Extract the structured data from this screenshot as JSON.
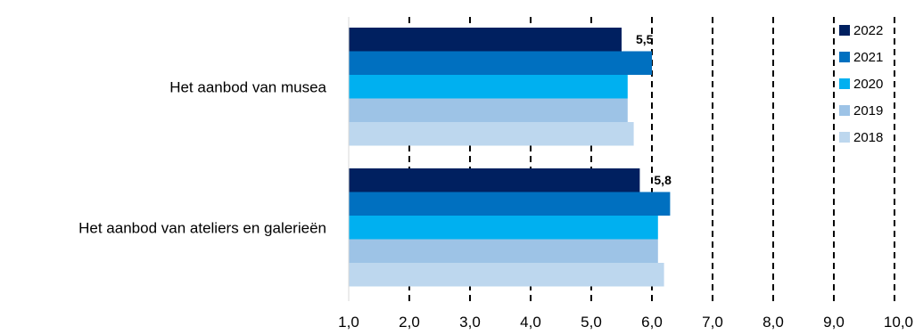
{
  "chart_data": {
    "type": "bar",
    "orientation": "horizontal",
    "title": "",
    "xlabel": "",
    "ylabel": "",
    "xlim": [
      1.0,
      10.0
    ],
    "x_ticks": [
      "1,0",
      "2,0",
      "3,0",
      "4,0",
      "5,0",
      "6,0",
      "7,0",
      "8,0",
      "9,0",
      "10,0"
    ],
    "x_tick_values": [
      1,
      2,
      3,
      4,
      5,
      6,
      7,
      8,
      9,
      10
    ],
    "grid": "vertical dashed",
    "legend_position": "right",
    "categories": [
      "Het aanbod van musea",
      "Het aanbod van ateliers en galerieën"
    ],
    "series": [
      {
        "name": "2022",
        "color": "#002060",
        "values": [
          5.5,
          5.8
        ],
        "labels": [
          "5,5",
          "5,8"
        ]
      },
      {
        "name": "2021",
        "color": "#0070c0",
        "values": [
          6.0,
          6.3
        ]
      },
      {
        "name": "2020",
        "color": "#00b0f0",
        "values": [
          5.6,
          6.1
        ]
      },
      {
        "name": "2019",
        "color": "#9dc3e6",
        "values": [
          5.6,
          6.1
        ]
      },
      {
        "name": "2018",
        "color": "#bdd7ee",
        "values": [
          5.7,
          6.2
        ]
      }
    ]
  }
}
